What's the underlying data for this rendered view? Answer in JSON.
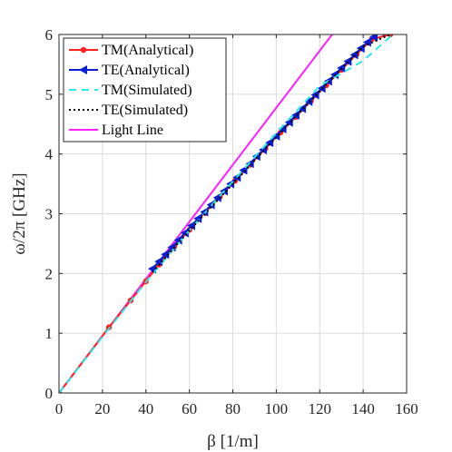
{
  "chart_data": {
    "type": "line",
    "xlabel": "β [1/m]",
    "ylabel": "ω/2π [GHz]",
    "xlim": [
      0,
      160
    ],
    "ylim": [
      0,
      6
    ],
    "xticks": [
      "0",
      "20",
      "40",
      "60",
      "80",
      "100",
      "120",
      "140",
      "160"
    ],
    "yticks": [
      "0",
      "1",
      "2",
      "3",
      "4",
      "5",
      "6"
    ],
    "grid": true,
    "legend_position": "top-left",
    "series": [
      {
        "name": "TM(Analytical)",
        "color": "#ff1f1f",
        "style": "solid-dot-markers",
        "x": [
          0,
          23,
          33,
          40,
          46,
          53,
          60,
          67,
          74,
          81,
          88,
          95,
          102,
          109,
          116,
          123,
          130,
          137,
          144,
          152.5
        ],
        "y": [
          0,
          1.1,
          1.55,
          1.87,
          2.15,
          2.45,
          2.73,
          3.01,
          3.28,
          3.55,
          3.82,
          4.09,
          4.36,
          4.62,
          4.89,
          5.15,
          5.41,
          5.67,
          5.92,
          6.0
        ]
      },
      {
        "name": "TE(Analytical)",
        "color": "#0a1fd4",
        "style": "solid-triangle-markers",
        "x": [
          43,
          46,
          49,
          52,
          55,
          58,
          61,
          64,
          67,
          70,
          73,
          76,
          79,
          82,
          85,
          88,
          91,
          94,
          97,
          100,
          103,
          106,
          109,
          112,
          115,
          118,
          121,
          124,
          127,
          130,
          133,
          136,
          139,
          142,
          145,
          148,
          151.5
        ],
        "y": [
          2.08,
          2.2,
          2.32,
          2.44,
          2.56,
          2.68,
          2.8,
          2.92,
          3.03,
          3.15,
          3.27,
          3.38,
          3.5,
          3.61,
          3.73,
          3.84,
          3.96,
          4.07,
          4.19,
          4.3,
          4.42,
          4.53,
          4.65,
          4.76,
          4.88,
          4.99,
          5.1,
          5.22,
          5.33,
          5.44,
          5.55,
          5.66,
          5.77,
          5.87,
          5.96,
          6.05,
          6.15
        ]
      },
      {
        "name": "TM(Simulated)",
        "color": "#2ee6e6",
        "style": "dashed",
        "x": [
          0,
          20,
          40,
          60,
          80,
          100,
          120,
          140,
          153
        ],
        "y": [
          0,
          0.94,
          1.86,
          2.72,
          3.54,
          4.35,
          5.14,
          5.56,
          5.98
        ]
      },
      {
        "name": "TE(Simulated)",
        "color": "#000000",
        "style": "dotted",
        "x": [
          43,
          60,
          80,
          100,
          120,
          140,
          152.5
        ],
        "y": [
          2.02,
          2.72,
          3.5,
          4.28,
          5.05,
          5.8,
          6.0
        ]
      },
      {
        "name": "Light Line",
        "color": "#ff1fff",
        "style": "solid",
        "x": [
          0,
          125.7
        ],
        "y": [
          0,
          6.0
        ]
      }
    ]
  }
}
